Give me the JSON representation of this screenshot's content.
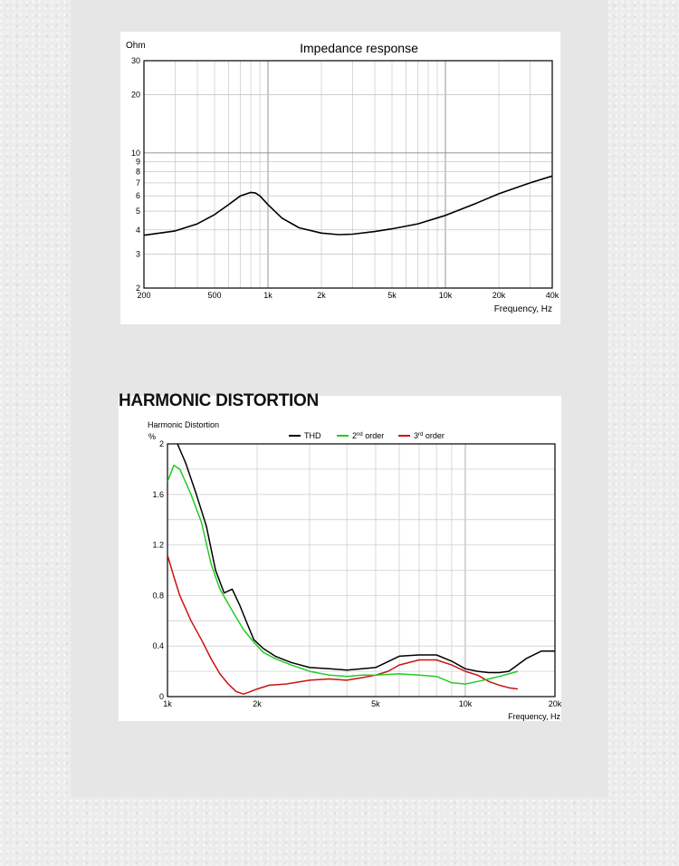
{
  "section_heading": "HARMONIC DISTORTION",
  "chart_data": [
    {
      "type": "line",
      "title": "Impedance response",
      "xlabel": "Frequency, Hz",
      "ylabel": "Ohm",
      "xscale": "log",
      "yscale": "log",
      "xlim": [
        200,
        40000
      ],
      "ylim": [
        2,
        30
      ],
      "grid": true,
      "x_ticks": [
        {
          "v": 200,
          "label": "200"
        },
        {
          "v": 500,
          "label": "500"
        },
        {
          "v": 1000,
          "label": "1k"
        },
        {
          "v": 2000,
          "label": "2k"
        },
        {
          "v": 5000,
          "label": "5k"
        },
        {
          "v": 10000,
          "label": "10k"
        },
        {
          "v": 20000,
          "label": "20k"
        },
        {
          "v": 40000,
          "label": "40k"
        }
      ],
      "y_ticks": [
        {
          "v": 2,
          "label": "2"
        },
        {
          "v": 3,
          "label": "3"
        },
        {
          "v": 4,
          "label": "4"
        },
        {
          "v": 5,
          "label": "5"
        },
        {
          "v": 6,
          "label": "6"
        },
        {
          "v": 7,
          "label": "7"
        },
        {
          "v": 8,
          "label": "8"
        },
        {
          "v": 9,
          "label": "9"
        },
        {
          "v": 10,
          "label": "10"
        },
        {
          "v": 20,
          "label": "20"
        },
        {
          "v": 30,
          "label": "30"
        }
      ],
      "series": [
        {
          "color": "#000000",
          "x": [
            200,
            300,
            400,
            500,
            600,
            700,
            800,
            850,
            900,
            1000,
            1200,
            1500,
            2000,
            2500,
            3000,
            4000,
            5000,
            7000,
            10000,
            15000,
            20000,
            30000,
            40000
          ],
          "y": [
            3.75,
            3.95,
            4.3,
            4.8,
            5.4,
            6.0,
            6.25,
            6.2,
            6.0,
            5.4,
            4.6,
            4.1,
            3.85,
            3.78,
            3.8,
            3.92,
            4.05,
            4.3,
            4.75,
            5.5,
            6.15,
            7.0,
            7.6
          ]
        }
      ]
    },
    {
      "type": "line",
      "title": "Harmonic Distortion",
      "xlabel": "Frequency, Hz",
      "ylabel": "%",
      "xscale": "log",
      "xlim": [
        1000,
        20000
      ],
      "ylim": [
        0,
        2
      ],
      "grid": true,
      "legend": "top",
      "x_ticks": [
        {
          "v": 1000,
          "label": "1k"
        },
        {
          "v": 2000,
          "label": "2k"
        },
        {
          "v": 5000,
          "label": "5k"
        },
        {
          "v": 10000,
          "label": "10k"
        },
        {
          "v": 20000,
          "label": "20k"
        }
      ],
      "y_ticks": [
        {
          "v": 0,
          "label": "0"
        },
        {
          "v": 0.4,
          "label": "0.4"
        },
        {
          "v": 0.8,
          "label": "0.8"
        },
        {
          "v": 1.2,
          "label": "1.2"
        },
        {
          "v": 1.6,
          "label": "1.6"
        },
        {
          "v": 2,
          "label": "2"
        }
      ],
      "series": [
        {
          "name": "THD",
          "legend_base": "THD",
          "legend_sup": "",
          "legend_tail": "",
          "color": "#000000",
          "x": [
            1080,
            1150,
            1250,
            1350,
            1450,
            1550,
            1650,
            1750,
            1850,
            1950,
            2100,
            2300,
            2600,
            3000,
            3500,
            4000,
            4500,
            5000,
            6000,
            7000,
            8000,
            9000,
            10000,
            11000,
            12000,
            13000,
            14000,
            16000,
            18000,
            20000
          ],
          "y": [
            2.0,
            1.85,
            1.6,
            1.35,
            1.0,
            0.82,
            0.85,
            0.72,
            0.58,
            0.45,
            0.38,
            0.32,
            0.27,
            0.23,
            0.22,
            0.21,
            0.22,
            0.23,
            0.32,
            0.33,
            0.33,
            0.28,
            0.22,
            0.2,
            0.19,
            0.19,
            0.2,
            0.3,
            0.36,
            0.36
          ]
        },
        {
          "name": "2nd order",
          "legend_base": "2",
          "legend_sup": "nd",
          "legend_tail": " order",
          "color": "#22cc22",
          "x": [
            1000,
            1050,
            1100,
            1200,
            1300,
            1400,
            1500,
            1650,
            1800,
            1950,
            2100,
            2300,
            2600,
            3000,
            3500,
            4000,
            4500,
            5000,
            6000,
            7000,
            8000,
            9000,
            10000,
            11000,
            12000,
            13000,
            14000,
            15000
          ],
          "y": [
            1.7,
            1.83,
            1.8,
            1.6,
            1.38,
            1.05,
            0.85,
            0.68,
            0.53,
            0.43,
            0.35,
            0.3,
            0.25,
            0.2,
            0.17,
            0.16,
            0.17,
            0.17,
            0.18,
            0.17,
            0.16,
            0.11,
            0.1,
            0.12,
            0.14,
            0.16,
            0.18,
            0.2
          ]
        },
        {
          "name": "3rd order",
          "legend_base": "3",
          "legend_sup": "rd",
          "legend_tail": " order",
          "color": "#cc1111",
          "x": [
            1000,
            1050,
            1100,
            1200,
            1300,
            1400,
            1500,
            1600,
            1700,
            1800,
            1900,
            2000,
            2200,
            2500,
            3000,
            3500,
            4000,
            4500,
            5000,
            5500,
            6000,
            7000,
            8000,
            9000,
            10000,
            11000,
            12000,
            13000,
            14000,
            15000
          ],
          "y": [
            1.12,
            0.95,
            0.8,
            0.6,
            0.45,
            0.3,
            0.18,
            0.1,
            0.04,
            0.02,
            0.04,
            0.06,
            0.09,
            0.1,
            0.13,
            0.14,
            0.13,
            0.15,
            0.17,
            0.2,
            0.25,
            0.29,
            0.29,
            0.25,
            0.2,
            0.17,
            0.12,
            0.09,
            0.07,
            0.06
          ]
        }
      ]
    }
  ]
}
